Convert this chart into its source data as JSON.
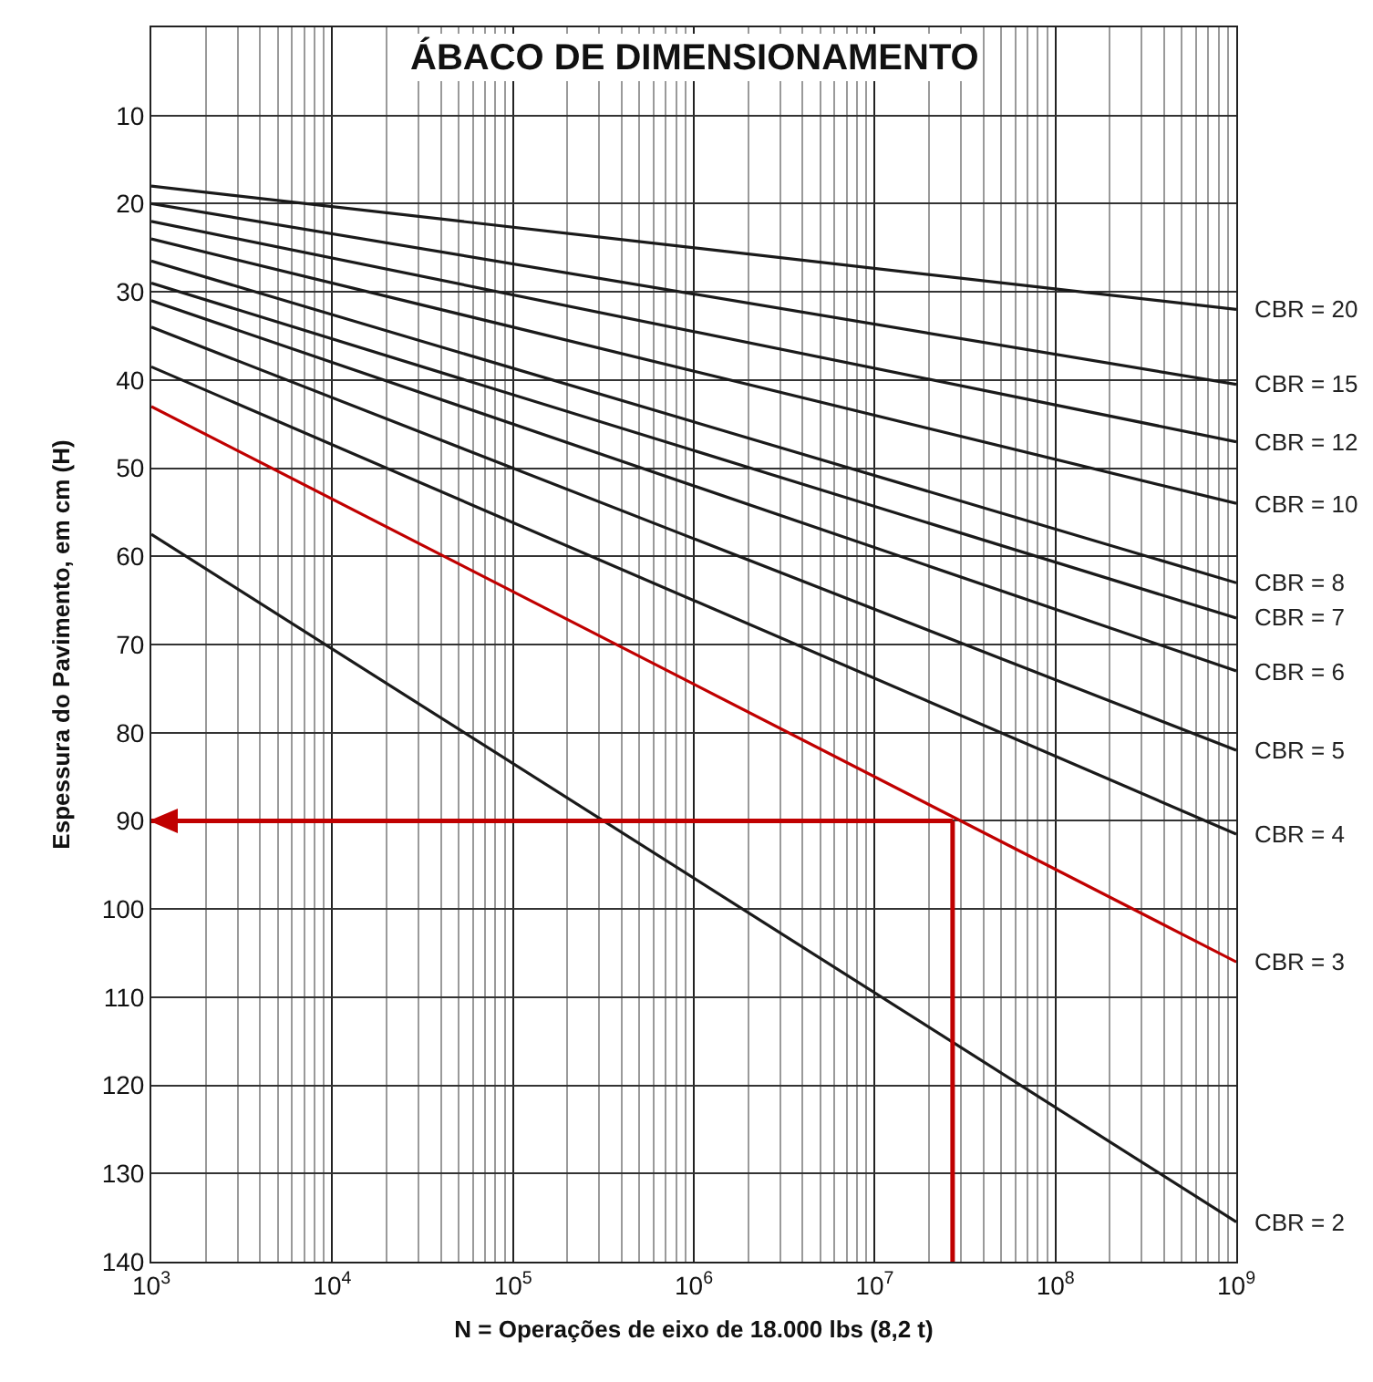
{
  "chart_data": {
    "type": "line",
    "title": "ÁBACO DE DIMENSIONAMENTO",
    "xlabel": "N = Operações de eixo de 18.000 lbs (8,2 t)",
    "ylabel": "Espessura do Pavimento, em cm (H)",
    "log": "x",
    "grid": true,
    "line_style": "solid",
    "xlim": [
      1000,
      1000000000
    ],
    "xticks": [
      {
        "value": 1000,
        "label": "10$^{3}$"
      },
      {
        "value": 10000,
        "label": "10$^{4}$"
      },
      {
        "value": 100000,
        "label": "10$^{5}$"
      },
      {
        "value": 1000000,
        "label": "10$^{6}$"
      },
      {
        "value": 10000000,
        "label": "10$^{7}$"
      },
      {
        "value": 100000000,
        "label": "10$^{8}$"
      },
      {
        "value": 1000000000,
        "label": "10$^{9}$"
      }
    ],
    "ylim": [
      140,
      0
    ],
    "yticks": [
      10,
      20,
      30,
      40,
      50,
      60,
      70,
      80,
      90,
      100,
      110,
      120,
      130,
      140
    ],
    "x": [
      1000,
      1000000000
    ],
    "series": [
      {
        "name": "CBR = 20",
        "color": "#1a1a1a",
        "values": [
          18,
          32
        ]
      },
      {
        "name": "CBR = 15",
        "color": "#1a1a1a",
        "values": [
          20,
          40.5
        ]
      },
      {
        "name": "CBR = 12",
        "color": "#1a1a1a",
        "values": [
          22,
          47
        ]
      },
      {
        "name": "CBR = 10",
        "color": "#1a1a1a",
        "values": [
          24,
          54
        ]
      },
      {
        "name": "CBR = 8",
        "color": "#1a1a1a",
        "values": [
          26.5,
          63
        ]
      },
      {
        "name": "CBR = 7",
        "color": "#1a1a1a",
        "values": [
          29,
          67
        ]
      },
      {
        "name": "CBR = 6",
        "color": "#1a1a1a",
        "values": [
          31,
          73
        ]
      },
      {
        "name": "CBR = 5",
        "color": "#1a1a1a",
        "values": [
          34,
          82
        ]
      },
      {
        "name": "CBR = 4",
        "color": "#1a1a1a",
        "values": [
          38.5,
          91.5
        ]
      },
      {
        "name": "CBR = 3",
        "color": "#c00000",
        "values": [
          43,
          106
        ]
      },
      {
        "name": "CBR = 2",
        "color": "#1a1a1a",
        "values": [
          57.5,
          135.5
        ]
      }
    ],
    "ref_lines": [
      {
        "axis": "x",
        "value": 27000000,
        "color": "#c00000"
      },
      {
        "axis": "y",
        "value": 90,
        "color": "#c00000"
      }
    ]
  }
}
